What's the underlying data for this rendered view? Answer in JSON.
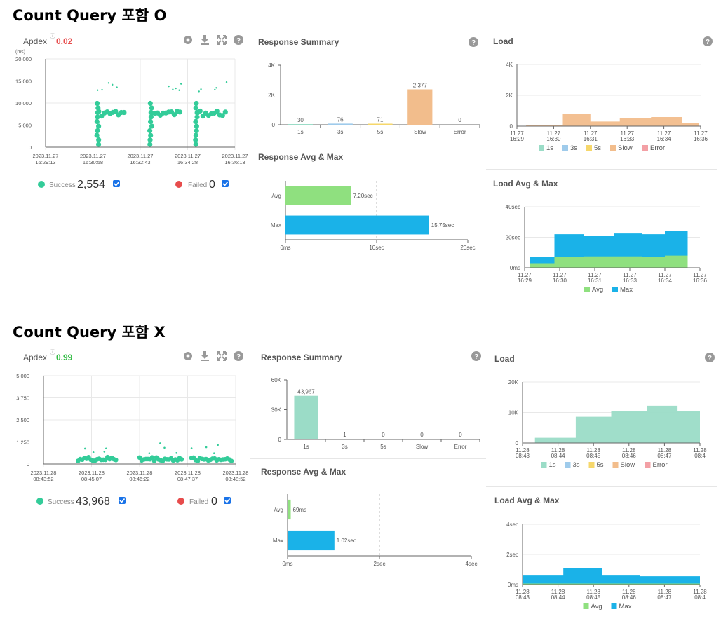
{
  "colors": {
    "green": "#33cc99",
    "red": "#e74c4c",
    "teal": "#9bdcc7",
    "blue": "#9fcbeb",
    "yellow": "#f6d76b",
    "orange": "#f2bd8c",
    "pink": "#f3a0a5",
    "avg": "#8fe07f",
    "max": "#1ab2e8",
    "checkbox": "#1a73e8"
  },
  "sections": [
    {
      "title": "Count Query 포함 O",
      "apdex": {
        "label": "Apdex",
        "value": "0.02",
        "value_color": "#e74c4c",
        "unit": "(ms)",
        "success_label": "Success",
        "success_count": "2,554",
        "failed_label": "Failed",
        "failed_count": "0",
        "icons": [
          "gear-icon",
          "download-icon",
          "expand-icon",
          "help-icon"
        ]
      },
      "response_summary": {
        "title": "Response Summary",
        "icon": "help-icon"
      },
      "response_avg_max": {
        "title": "Response Avg & Max"
      },
      "load": {
        "title": "Load",
        "icon": "help-icon"
      },
      "load_avg_max": {
        "title": "Load Avg & Max"
      }
    },
    {
      "title": "Count Query 포함 X",
      "apdex": {
        "label": "Apdex",
        "value": "0.99",
        "value_color": "#33bb44",
        "unit": "",
        "success_label": "Success",
        "success_count": "43,968",
        "failed_label": "Failed",
        "failed_count": "0",
        "icons": [
          "gear-icon",
          "download-icon",
          "expand-icon",
          "help-icon"
        ]
      },
      "response_summary": {
        "title": "Response Summary",
        "icon": "help-icon"
      },
      "response_avg_max": {
        "title": "Response Avg & Max"
      },
      "load": {
        "title": "Load",
        "icon": "help-icon"
      },
      "load_avg_max": {
        "title": "Load Avg & Max"
      }
    }
  ],
  "chart_data": [
    {
      "id": "s1-scatter",
      "type": "scatter",
      "title": "Apdex",
      "ylabel": "(ms)",
      "ylim": [
        0,
        20000
      ],
      "yticks": [
        "20,000",
        "15,000",
        "10,000",
        "5,000",
        "0"
      ],
      "xticks": [
        [
          "2023.11.27",
          "16:29:13"
        ],
        [
          "2023.11.27",
          "16:30:58"
        ],
        [
          "2023.11.27",
          "16:32:43"
        ],
        [
          "2023.11.27",
          "16:34:28"
        ],
        [
          "2023.11.27",
          "16:36:13"
        ]
      ],
      "clusters": [
        [
          0.27,
          0.42
        ],
        [
          0.55,
          0.72
        ],
        [
          0.79,
          0.96
        ]
      ]
    },
    {
      "id": "s1-summary",
      "type": "bar",
      "title": "Response Summary",
      "categories": [
        "1s",
        "3s",
        "5s",
        "Slow",
        "Error"
      ],
      "values": [
        30,
        76,
        71,
        2377,
        0
      ],
      "value_labels": [
        "30",
        "76",
        "71",
        "2,377",
        "0"
      ],
      "yticks": [
        "4K",
        "2K",
        "0"
      ],
      "ylim": [
        0,
        4000
      ],
      "bar_colors": [
        "#9bdcc7",
        "#9fcbeb",
        "#f6d76b",
        "#f2bd8c",
        "#f3a0a5"
      ]
    },
    {
      "id": "s1-avgmax",
      "type": "bar",
      "orientation": "horizontal",
      "title": "Response Avg & Max",
      "categories": [
        "Avg",
        "Max"
      ],
      "values": [
        7.2,
        15.75
      ],
      "value_labels": [
        "7.20sec",
        "15.75sec"
      ],
      "xticks": [
        "0ms",
        "10sec",
        "20sec"
      ],
      "xlim": [
        0,
        20
      ],
      "bar_colors": [
        "#8fe07f",
        "#1ab2e8"
      ]
    },
    {
      "id": "s1-load",
      "type": "area",
      "title": "Load",
      "yticks": [
        "4K",
        "2K",
        "0"
      ],
      "ylim": [
        0,
        4000
      ],
      "xticks": [
        [
          "11.27",
          "16:29"
        ],
        [
          "11.27",
          "16:30"
        ],
        [
          "11.27",
          "16:31"
        ],
        [
          "11.27",
          "16:33"
        ],
        [
          "11.27",
          "16:34"
        ],
        [
          "11.27",
          "16:36"
        ]
      ],
      "series_name": "Slow",
      "series_color": "#f2bd8c",
      "steps": [
        [
          0.05,
          0.25,
          60
        ],
        [
          0.25,
          0.4,
          800
        ],
        [
          0.4,
          0.56,
          300
        ],
        [
          0.56,
          0.73,
          520
        ],
        [
          0.73,
          0.9,
          590
        ],
        [
          0.9,
          0.99,
          200
        ]
      ],
      "legend": [
        "1s",
        "3s",
        "5s",
        "Slow",
        "Error"
      ]
    },
    {
      "id": "s1-loadavg",
      "type": "area",
      "title": "Load Avg & Max",
      "yticks": [
        "40sec",
        "20sec",
        "0ms"
      ],
      "ylim": [
        0,
        40
      ],
      "xticks": [
        [
          "11.27",
          "16:29"
        ],
        [
          "11.27",
          "16:30"
        ],
        [
          "11.27",
          "16:31"
        ],
        [
          "11.27",
          "16:33"
        ],
        [
          "11.27",
          "16:34"
        ],
        [
          "11.27",
          "16:36"
        ]
      ],
      "max_steps": [
        [
          0.03,
          0.17,
          7
        ],
        [
          0.17,
          0.34,
          22
        ],
        [
          0.34,
          0.51,
          21
        ],
        [
          0.51,
          0.67,
          22.5
        ],
        [
          0.67,
          0.8,
          22
        ],
        [
          0.8,
          0.93,
          24
        ]
      ],
      "avg_steps": [
        [
          0.03,
          0.17,
          3
        ],
        [
          0.17,
          0.34,
          7
        ],
        [
          0.34,
          0.51,
          7.5
        ],
        [
          0.51,
          0.67,
          7.5
        ],
        [
          0.67,
          0.8,
          7
        ],
        [
          0.8,
          0.93,
          8
        ]
      ],
      "legend": [
        "Avg",
        "Max"
      ]
    },
    {
      "id": "s2-scatter",
      "type": "scatter",
      "title": "Apdex",
      "ylim": [
        0,
        5000
      ],
      "yticks": [
        "5,000",
        "3,750",
        "2,500",
        "1,250",
        "0"
      ],
      "xticks": [
        [
          "2023.11.28",
          "08:43:52"
        ],
        [
          "2023.11.28",
          "08:45:07"
        ],
        [
          "2023.11.28",
          "08:46:22"
        ],
        [
          "2023.11.28",
          "08:47:37"
        ],
        [
          "2023.11.28",
          "08:48:52"
        ]
      ],
      "clusters": [
        [
          0.18,
          0.38
        ],
        [
          0.5,
          0.72
        ],
        [
          0.77,
          0.98
        ]
      ]
    },
    {
      "id": "s2-summary",
      "type": "bar",
      "title": "Response Summary",
      "categories": [
        "1s",
        "3s",
        "5s",
        "Slow",
        "Error"
      ],
      "values": [
        43967,
        1,
        0,
        0,
        0
      ],
      "value_labels": [
        "43,967",
        "1",
        "0",
        "0",
        "0"
      ],
      "yticks": [
        "60K",
        "30K",
        "0"
      ],
      "ylim": [
        0,
        60000
      ],
      "bar_colors": [
        "#9bdcc7",
        "#9fcbeb",
        "#f6d76b",
        "#f2bd8c",
        "#f3a0a5"
      ]
    },
    {
      "id": "s2-avgmax",
      "type": "bar",
      "orientation": "horizontal",
      "title": "Response Avg & Max",
      "categories": [
        "Avg",
        "Max"
      ],
      "values": [
        0.069,
        1.02
      ],
      "value_labels": [
        "69ms",
        "1.02sec"
      ],
      "xticks": [
        "0ms",
        "2sec",
        "4sec"
      ],
      "xlim": [
        0,
        4
      ],
      "bar_colors": [
        "#8fe07f",
        "#1ab2e8"
      ]
    },
    {
      "id": "s2-load",
      "type": "area",
      "title": "Load",
      "yticks": [
        "20K",
        "10K",
        "0"
      ],
      "ylim": [
        0,
        20000
      ],
      "xticks": [
        [
          "11.28",
          "08:43"
        ],
        [
          "11.28",
          "08:44"
        ],
        [
          "11.28",
          "08:45"
        ],
        [
          "11.28",
          "08:46"
        ],
        [
          "11.28",
          "08:47"
        ],
        [
          "11.28",
          "08:4"
        ]
      ],
      "series_name": "1s",
      "series_color": "#9bdcc7",
      "steps": [
        [
          0.07,
          0.3,
          1700
        ],
        [
          0.3,
          0.5,
          8600
        ],
        [
          0.5,
          0.7,
          10500
        ],
        [
          0.7,
          0.87,
          12200
        ],
        [
          0.87,
          1.0,
          10500
        ]
      ],
      "legend": [
        "1s",
        "3s",
        "5s",
        "Slow",
        "Error"
      ]
    },
    {
      "id": "s2-loadavg",
      "type": "area",
      "title": "Load Avg & Max",
      "yticks": [
        "4sec",
        "2sec",
        "0ms"
      ],
      "ylim": [
        0,
        4
      ],
      "xticks": [
        [
          "11.28",
          "08:43"
        ],
        [
          "11.28",
          "08:44"
        ],
        [
          "11.28",
          "08:45"
        ],
        [
          "11.28",
          "08:46"
        ],
        [
          "11.28",
          "08:47"
        ],
        [
          "11.28",
          "08:4"
        ]
      ],
      "max_steps": [
        [
          0.0,
          0.23,
          0.6
        ],
        [
          0.23,
          0.45,
          1.1
        ],
        [
          0.45,
          0.66,
          0.6
        ],
        [
          0.66,
          0.85,
          0.55
        ],
        [
          0.85,
          1.0,
          0.55
        ]
      ],
      "avg_steps": [
        [
          0.0,
          0.23,
          0.07
        ],
        [
          0.23,
          0.45,
          0.07
        ],
        [
          0.45,
          0.66,
          0.07
        ],
        [
          0.66,
          0.85,
          0.07
        ],
        [
          0.85,
          1.0,
          0.07
        ]
      ],
      "legend": [
        "Avg",
        "Max"
      ]
    }
  ]
}
